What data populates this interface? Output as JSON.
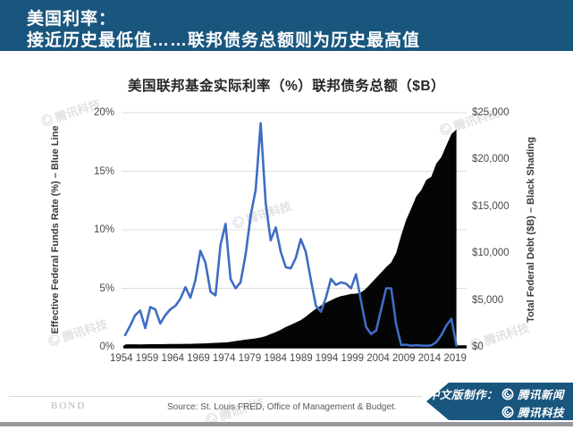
{
  "header": {
    "line1": "美国利率：",
    "line2": "接近历史最低值……联邦债务总额则为历史最高值"
  },
  "chart_data": {
    "type": "line+area",
    "title": "美国联邦基金实际利率（%）联邦债务总额（$B）",
    "x": [
      1954,
      1955,
      1956,
      1957,
      1958,
      1959,
      1960,
      1961,
      1962,
      1963,
      1964,
      1965,
      1966,
      1967,
      1968,
      1969,
      1970,
      1971,
      1972,
      1973,
      1974,
      1975,
      1976,
      1977,
      1978,
      1979,
      1980,
      1981,
      1982,
      1983,
      1984,
      1985,
      1986,
      1987,
      1988,
      1989,
      1990,
      1991,
      1992,
      1993,
      1994,
      1995,
      1996,
      1997,
      1998,
      1999,
      2000,
      2001,
      2002,
      2003,
      2004,
      2005,
      2006,
      2007,
      2008,
      2009,
      2010,
      2011,
      2012,
      2013,
      2014,
      2015,
      2016,
      2017,
      2018,
      2019,
      2020
    ],
    "series": [
      {
        "name": "Effective Federal Funds Rate (%)",
        "type": "line",
        "axis": "left",
        "color": "#3E6DC4",
        "values": [
          1.0,
          1.8,
          2.7,
          3.1,
          1.6,
          3.4,
          3.2,
          2.0,
          2.7,
          3.2,
          3.5,
          4.1,
          5.1,
          4.2,
          5.7,
          8.2,
          7.2,
          4.7,
          4.4,
          8.7,
          10.5,
          5.8,
          5.0,
          5.5,
          7.9,
          11.2,
          13.4,
          19.1,
          12.3,
          9.1,
          10.2,
          8.1,
          6.8,
          6.7,
          7.6,
          9.2,
          8.1,
          5.7,
          3.5,
          3.0,
          4.2,
          5.8,
          5.3,
          5.5,
          5.4,
          5.0,
          6.2,
          3.9,
          1.7,
          1.1,
          1.4,
          3.2,
          5.0,
          5.0,
          1.9,
          0.16,
          0.18,
          0.1,
          0.14,
          0.11,
          0.09,
          0.13,
          0.4,
          1.0,
          1.83,
          2.4,
          0.1
        ]
      },
      {
        "name": "Total Federal Debt ($B)",
        "type": "area",
        "axis": "right",
        "color": "#050505",
        "values": [
          271,
          274,
          273,
          271,
          276,
          285,
          286,
          289,
          298,
          306,
          312,
          317,
          320,
          326,
          348,
          354,
          371,
          398,
          427,
          458,
          475,
          533,
          620,
          699,
          772,
          827,
          908,
          998,
          1142,
          1377,
          1572,
          1823,
          2125,
          2350,
          2602,
          2857,
          3233,
          3665,
          4065,
          4411,
          4693,
          4974,
          5225,
          5413,
          5526,
          5656,
          5674,
          5807,
          6228,
          6783,
          7379,
          7933,
          8507,
          9008,
          10025,
          11910,
          13562,
          14790,
          16066,
          16738,
          17824,
          18151,
          19573,
          20245,
          21516,
          22719,
          23200
        ]
      }
    ],
    "left_axis": {
      "label": "Effective Federal Funds Rate (%) – Blue Line",
      "min": 0,
      "max": 20,
      "ticks_top_to_bottom": [
        "20%",
        "15%",
        "10%",
        "5%",
        "0%"
      ]
    },
    "right_axis": {
      "label": "Total Federal Debt ($B) – Black Shading",
      "min": 0,
      "max": 25000,
      "ticks_top_to_bottom": [
        "$25,000",
        "$20,000",
        "$15,000",
        "$10,000",
        "$5,000",
        "$0"
      ]
    },
    "x_axis": {
      "tick_labels": [
        "1954",
        "1959",
        "1964",
        "1969",
        "1974",
        "1979",
        "1984",
        "1989",
        "1994",
        "1999",
        "2004",
        "2009",
        "2014",
        "2019"
      ]
    },
    "grid": "horizontal",
    "legend_position": "none"
  },
  "watermark": {
    "text": "腾讯科技"
  },
  "footer": {
    "logo": "BOND",
    "source": "Source: St. Louis FRED, Office of Management & Budget.",
    "badge": {
      "prefix": "中文版制作：",
      "line1": "腾讯新闻",
      "line2": "腾讯科技"
    }
  },
  "theme": {
    "header_bg": "#19567E",
    "badge_bg": "#19567E",
    "line_blue": "#3E6DC4",
    "debt_fill": "#050505",
    "gridline": "#dcdcdc",
    "bottom_strip": "#97999c"
  }
}
